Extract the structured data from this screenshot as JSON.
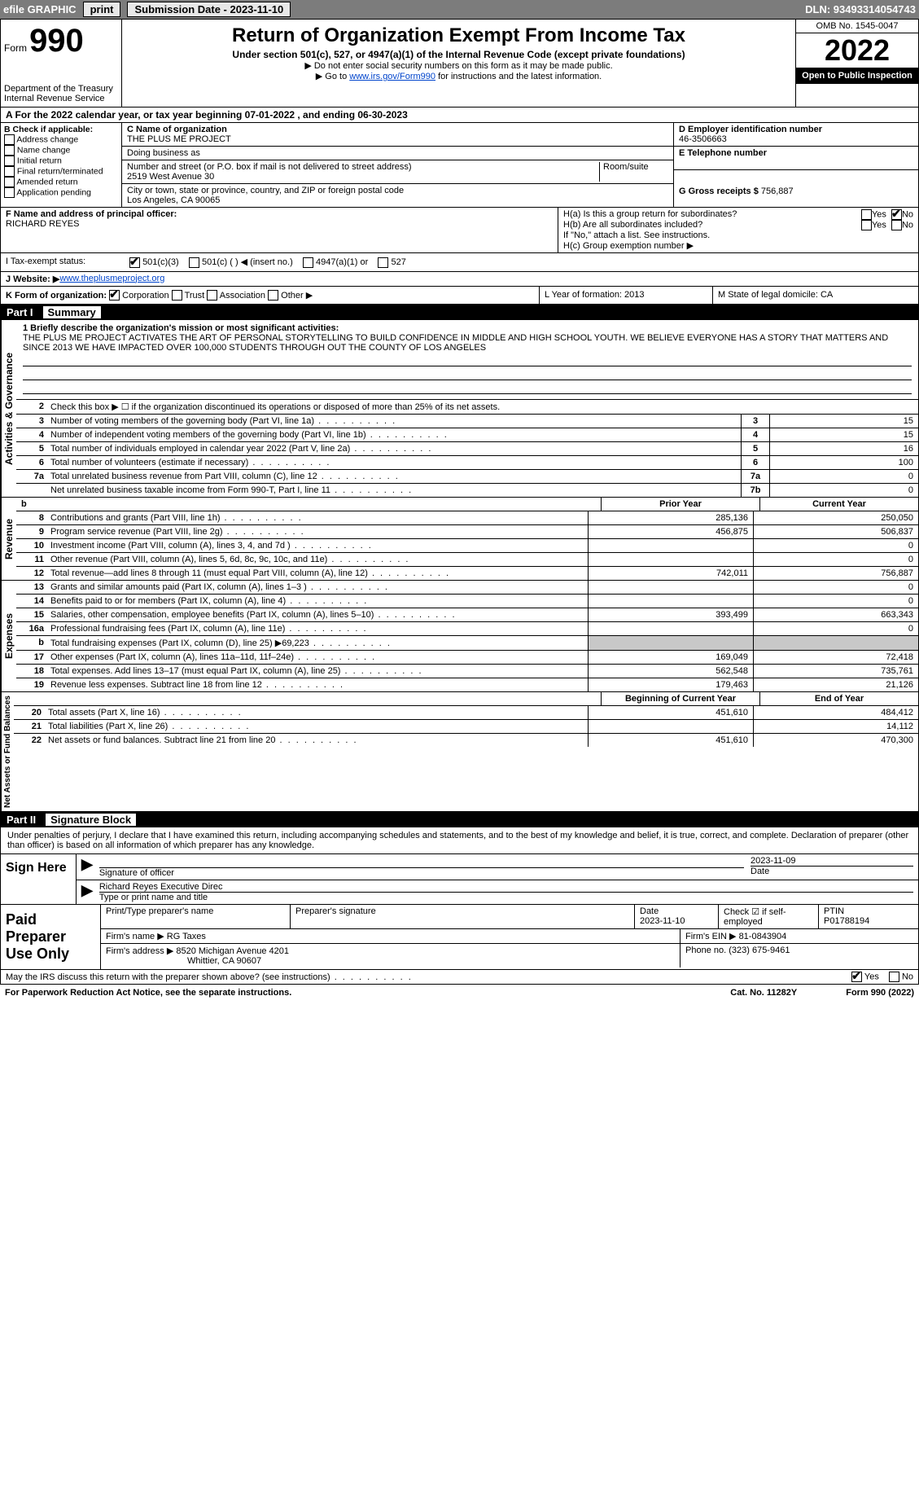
{
  "topbar": {
    "efile": "efile GRAPHIC",
    "print": "print",
    "submission_label": "Submission Date - 2023-11-10",
    "dln": "DLN: 93493314054743"
  },
  "header": {
    "form_prefix": "Form",
    "form_number": "990",
    "dept": "Department of the Treasury",
    "irs": "Internal Revenue Service",
    "title": "Return of Organization Exempt From Income Tax",
    "subtitle": "Under section 501(c), 527, or 4947(a)(1) of the Internal Revenue Code (except private foundations)",
    "note1": "▶ Do not enter social security numbers on this form as it may be made public.",
    "note2_pre": "▶ Go to ",
    "note2_link": "www.irs.gov/Form990",
    "note2_post": " for instructions and the latest information.",
    "omb": "OMB No. 1545-0047",
    "year": "2022",
    "open": "Open to Public Inspection"
  },
  "rowA": "A For the 2022 calendar year, or tax year beginning 07-01-2022    , and ending 06-30-2023",
  "boxB": {
    "label": "B Check if applicable:",
    "opts": [
      "Address change",
      "Name change",
      "Initial return",
      "Final return/terminated",
      "Amended return",
      "Application pending"
    ]
  },
  "boxC": {
    "name_label": "C Name of organization",
    "name": "THE PLUS ME PROJECT",
    "dba_label": "Doing business as",
    "dba": "",
    "addr_label": "Number and street (or P.O. box if mail is not delivered to street address)",
    "room_label": "Room/suite",
    "addr": "2519 West Avenue 30",
    "city_label": "City or town, state or province, country, and ZIP or foreign postal code",
    "city": "Los Angeles, CA  90065"
  },
  "boxD": {
    "label": "D Employer identification number",
    "ein": "46-3506663",
    "e_label": "E Telephone number",
    "phone": "",
    "g_label": "G Gross receipts $",
    "gross": "756,887"
  },
  "boxF": {
    "label": "F  Name and address of principal officer:",
    "name": "RICHARD REYES"
  },
  "boxH": {
    "a": "H(a)  Is this a group return for subordinates?",
    "b": "H(b)  Are all subordinates included?",
    "b_note": "If \"No,\" attach a list. See instructions.",
    "c": "H(c)  Group exemption number ▶",
    "yes": "Yes",
    "no": "No"
  },
  "rowI": {
    "label": "I  Tax-exempt status:",
    "opt1": "501(c)(3)",
    "opt2": "501(c) (   ) ◀ (insert no.)",
    "opt3": "4947(a)(1) or",
    "opt4": "527"
  },
  "rowJ": {
    "label": "J  Website: ▶ ",
    "url": "www.theplusmeproject.org"
  },
  "rowK": {
    "k": "K Form of organization:",
    "corp": "Corporation",
    "trust": "Trust",
    "assoc": "Association",
    "other": "Other ▶",
    "l": "L Year of formation: 2013",
    "m": "M State of legal domicile: CA"
  },
  "partI": {
    "label": "Part I",
    "title": "Summary"
  },
  "mission": {
    "q1": "1  Briefly describe the organization's mission or most significant activities:",
    "text": "THE PLUS ME PROJECT ACTIVATES THE ART OF PERSONAL STORYTELLING TO BUILD CONFIDENCE IN MIDDLE AND HIGH SCHOOL YOUTH. WE BELIEVE EVERYONE HAS A STORY THAT MATTERS AND SINCE 2013 WE HAVE IMPACTED OVER 100,000 STUDENTS THROUGH OUT THE COUNTY OF LOS ANGELES"
  },
  "gov": {
    "vert": "Activities & Governance",
    "r2": "Check this box ▶ ☐  if the organization discontinued its operations or disposed of more than 25% of its net assets.",
    "rows": [
      {
        "n": "3",
        "d": "Number of voting members of the governing body (Part VI, line 1a)",
        "b": "3",
        "v": "15"
      },
      {
        "n": "4",
        "d": "Number of independent voting members of the governing body (Part VI, line 1b)",
        "b": "4",
        "v": "15"
      },
      {
        "n": "5",
        "d": "Total number of individuals employed in calendar year 2022 (Part V, line 2a)",
        "b": "5",
        "v": "16"
      },
      {
        "n": "6",
        "d": "Total number of volunteers (estimate if necessary)",
        "b": "6",
        "v": "100"
      },
      {
        "n": "7a",
        "d": "Total unrelated business revenue from Part VIII, column (C), line 12",
        "b": "7a",
        "v": "0"
      },
      {
        "n": "",
        "d": "Net unrelated business taxable income from Form 990-T, Part I, line 11",
        "b": "7b",
        "v": "0"
      }
    ]
  },
  "pycy": {
    "py": "Prior Year",
    "cy": "Current Year"
  },
  "rev": {
    "vert": "Revenue",
    "rows": [
      {
        "n": "8",
        "d": "Contributions and grants (Part VIII, line 1h)",
        "py": "285,136",
        "cy": "250,050"
      },
      {
        "n": "9",
        "d": "Program service revenue (Part VIII, line 2g)",
        "py": "456,875",
        "cy": "506,837"
      },
      {
        "n": "10",
        "d": "Investment income (Part VIII, column (A), lines 3, 4, and 7d )",
        "py": "",
        "cy": "0"
      },
      {
        "n": "11",
        "d": "Other revenue (Part VIII, column (A), lines 5, 6d, 8c, 9c, 10c, and 11e)",
        "py": "",
        "cy": "0"
      },
      {
        "n": "12",
        "d": "Total revenue—add lines 8 through 11 (must equal Part VIII, column (A), line 12)",
        "py": "742,011",
        "cy": "756,887"
      }
    ]
  },
  "exp": {
    "vert": "Expenses",
    "rows": [
      {
        "n": "13",
        "d": "Grants and similar amounts paid (Part IX, column (A), lines 1–3 )",
        "py": "",
        "cy": "0"
      },
      {
        "n": "14",
        "d": "Benefits paid to or for members (Part IX, column (A), line 4)",
        "py": "",
        "cy": "0"
      },
      {
        "n": "15",
        "d": "Salaries, other compensation, employee benefits (Part IX, column (A), lines 5–10)",
        "py": "393,499",
        "cy": "663,343"
      },
      {
        "n": "16a",
        "d": "Professional fundraising fees (Part IX, column (A), line 11e)",
        "py": "",
        "cy": "0"
      },
      {
        "n": "b",
        "d": "Total fundraising expenses (Part IX, column (D), line 25) ▶69,223",
        "py": "shaded",
        "cy": "shaded"
      },
      {
        "n": "17",
        "d": "Other expenses (Part IX, column (A), lines 11a–11d, 11f–24e)",
        "py": "169,049",
        "cy": "72,418"
      },
      {
        "n": "18",
        "d": "Total expenses. Add lines 13–17 (must equal Part IX, column (A), line 25)",
        "py": "562,548",
        "cy": "735,761"
      },
      {
        "n": "19",
        "d": "Revenue less expenses. Subtract line 18 from line 12",
        "py": "179,463",
        "cy": "21,126"
      }
    ]
  },
  "net": {
    "vert": "Net Assets or Fund Balances",
    "hdr": {
      "py": "Beginning of Current Year",
      "cy": "End of Year"
    },
    "rows": [
      {
        "n": "20",
        "d": "Total assets (Part X, line 16)",
        "py": "451,610",
        "cy": "484,412"
      },
      {
        "n": "21",
        "d": "Total liabilities (Part X, line 26)",
        "py": "",
        "cy": "14,112"
      },
      {
        "n": "22",
        "d": "Net assets or fund balances. Subtract line 21 from line 20",
        "py": "451,610",
        "cy": "470,300"
      }
    ]
  },
  "partII": {
    "label": "Part II",
    "title": "Signature Block"
  },
  "sigText": "Under penalties of perjury, I declare that I have examined this return, including accompanying schedules and statements, and to the best of my knowledge and belief, it is true, correct, and complete. Declaration of preparer (other than officer) is based on all information of which preparer has any knowledge.",
  "sign": {
    "here": "Sign Here",
    "sig_label": "Signature of officer",
    "date": "2023-11-09",
    "date_label": "Date",
    "name": "Richard Reyes  Executive Direc",
    "name_label": "Type or print name and title"
  },
  "paid": {
    "label": "Paid Preparer Use Only",
    "h1": "Print/Type preparer's name",
    "h2": "Preparer's signature",
    "h3": "Date",
    "h3v": "2023-11-10",
    "h4": "Check ☑ if self-employed",
    "h5": "PTIN",
    "h5v": "P01788194",
    "firm_label": "Firm's name    ▶",
    "firm": "RG Taxes",
    "ein_label": "Firm's EIN ▶",
    "ein": "81-0843904",
    "addr_label": "Firm's address ▶",
    "addr1": "8520 Michigan Avenue 4201",
    "addr2": "Whittier, CA  90607",
    "phone_label": "Phone no.",
    "phone": "(323) 675-9461"
  },
  "discuss": {
    "q": "May the IRS discuss this return with the preparer shown above? (see instructions)",
    "yes": "Yes",
    "no": "No"
  },
  "footer": {
    "left": "For Paperwork Reduction Act Notice, see the separate instructions.",
    "mid": "Cat. No. 11282Y",
    "right": "Form 990 (2022)"
  }
}
